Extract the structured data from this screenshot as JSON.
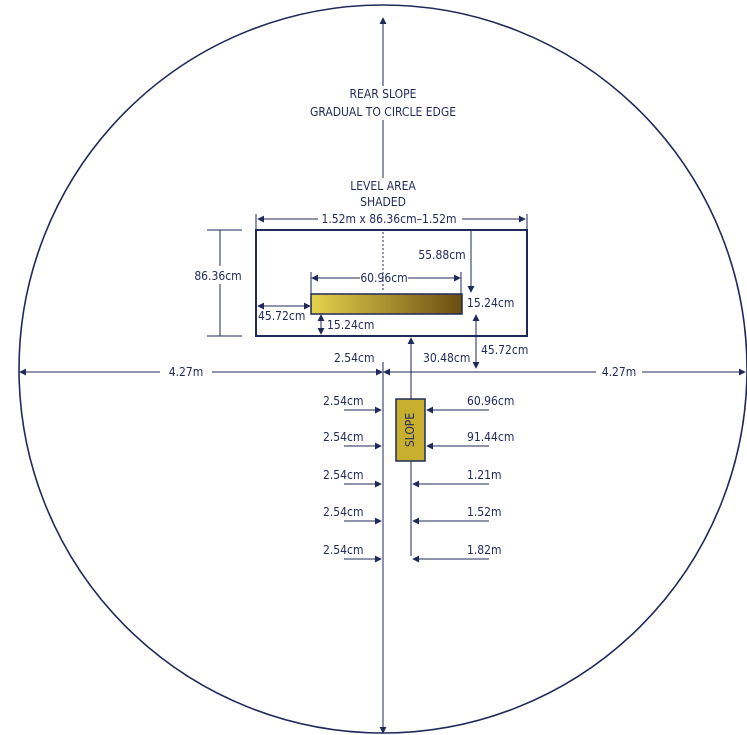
{
  "colors": {
    "line": "#1f2a5a",
    "board_gradient_start": "#e6d34c",
    "board_gradient_end": "#6b4d12",
    "slope_block": "#c8b02e"
  },
  "labels": {
    "rear_slope_1": "REAR SLOPE",
    "rear_slope_2": "GRADUAL TO CIRCLE EDGE",
    "level_area_1": "LEVEL AREA",
    "level_area_2": "SHADED",
    "top_width": "1.52m x 86.36cm–1.52m",
    "left_height": "86.36cm",
    "top_gap": "55.88cm",
    "board_width": "60.96cm",
    "board_height": "15.24cm",
    "left_gap": "45.72cm",
    "bottom_gap": "15.24cm",
    "center_offset": "2.54cm",
    "right_offset": "30.48cm",
    "right_drop": "45.72cm",
    "left_radius": "4.27m",
    "right_radius": "4.27m",
    "slope": "SLOPE"
  },
  "steps": [
    {
      "left": "2.54cm",
      "right": "60.96cm"
    },
    {
      "left": "2.54cm",
      "right": "91.44cm"
    },
    {
      "left": "2.54cm",
      "right": "1.21m"
    },
    {
      "left": "2.54cm",
      "right": "1.52m"
    },
    {
      "left": "2.54cm",
      "right": "1.82m"
    }
  ]
}
